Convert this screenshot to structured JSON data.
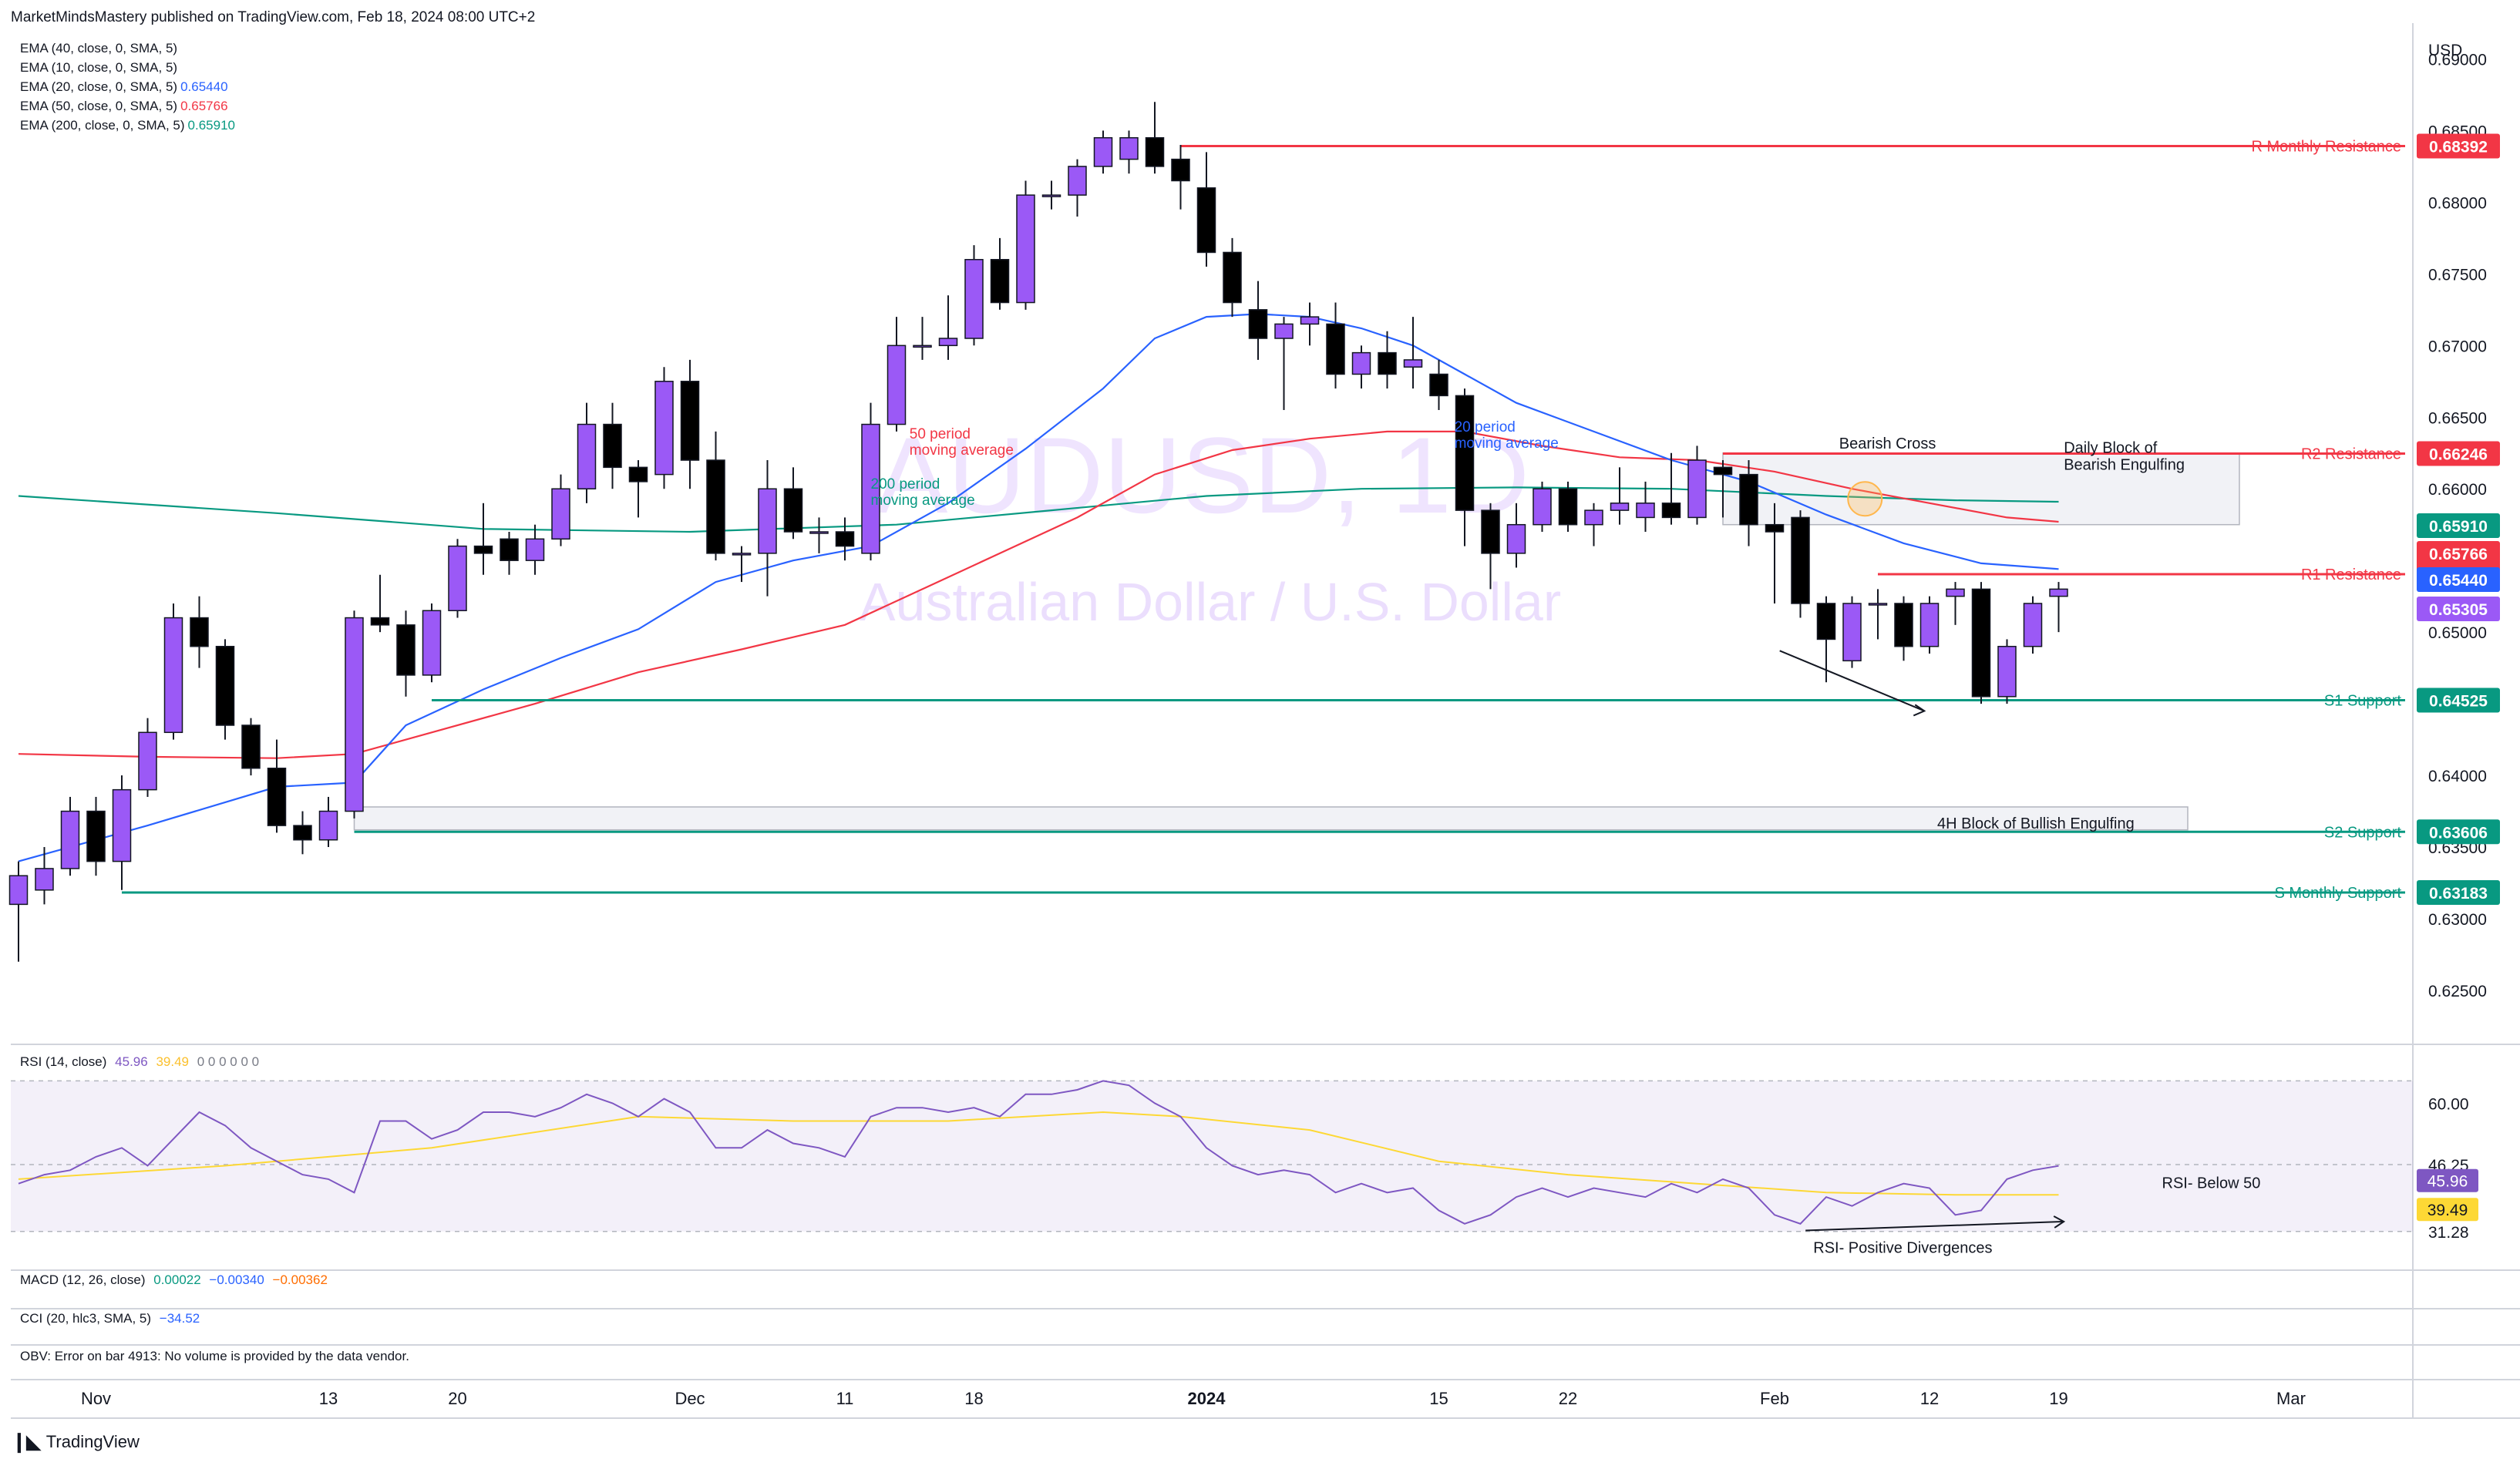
{
  "header": {
    "publisher": "MarketMindsMastery published on TradingView.com, Feb 18, 2024 08:00 UTC+2"
  },
  "legend": [
    {
      "label": "EMA (40, close, 0, SMA, 5)",
      "value": "",
      "color": "#131722"
    },
    {
      "label": "EMA (10, close, 0, SMA, 5)",
      "value": "",
      "color": "#131722"
    },
    {
      "label": "EMA (20, close, 0, SMA, 5)",
      "value": "0.65440",
      "color": "#2962ff"
    },
    {
      "label": "EMA (50, close, 0, SMA, 5)",
      "value": "0.65766",
      "color": "#f23645"
    },
    {
      "label": "EMA (200, close, 0, SMA, 5)",
      "value": "0.65910",
      "color": "#089981"
    }
  ],
  "watermark": {
    "symbol": "AUDUSD, 1D",
    "description": "Australian Dollar / U.S. Dollar"
  },
  "currency": "USD",
  "colors": {
    "bull": "#9b59f6",
    "bear": "#000000",
    "ema20": "#2962ff",
    "ema50": "#f23645",
    "ema200": "#089981",
    "resistance": "#f23645",
    "support": "#089981",
    "rsi": "#7e57c2",
    "rsi_ma": "#fdd835"
  },
  "chart_data": {
    "type": "candlestick",
    "ylim": [
      0.6215,
      0.6925
    ],
    "y_ticks": [
      "0.69000",
      "0.68500",
      "0.68000",
      "0.67500",
      "0.67000",
      "0.66500",
      "0.66000",
      "0.65500",
      "0.65000",
      "0.64500",
      "0.64000",
      "0.63500",
      "0.63000",
      "0.62500"
    ],
    "x_ticks": [
      {
        "label": "Nov",
        "bar": 3
      },
      {
        "label": "13",
        "bar": 12
      },
      {
        "label": "20",
        "bar": 17
      },
      {
        "label": "Dec",
        "bar": 26
      },
      {
        "label": "11",
        "bar": 32
      },
      {
        "label": "18",
        "bar": 37
      },
      {
        "label": "2024",
        "bar": 46
      },
      {
        "label": "15",
        "bar": 55
      },
      {
        "label": "22",
        "bar": 60
      },
      {
        "label": "Feb",
        "bar": 68
      },
      {
        "label": "12",
        "bar": 74
      },
      {
        "label": "19",
        "bar": 79
      },
      {
        "label": "Mar",
        "bar": 88
      }
    ],
    "candles": [
      [
        0.631,
        0.634,
        0.627,
        0.633
      ],
      [
        0.632,
        0.635,
        0.631,
        0.6335
      ],
      [
        0.6335,
        0.6385,
        0.633,
        0.6375
      ],
      [
        0.6375,
        0.6385,
        0.633,
        0.634
      ],
      [
        0.634,
        0.64,
        0.632,
        0.639
      ],
      [
        0.639,
        0.644,
        0.6385,
        0.643
      ],
      [
        0.643,
        0.652,
        0.6425,
        0.651
      ],
      [
        0.651,
        0.6525,
        0.6475,
        0.649
      ],
      [
        0.649,
        0.6495,
        0.6425,
        0.6435
      ],
      [
        0.6435,
        0.644,
        0.64,
        0.6405
      ],
      [
        0.6405,
        0.6425,
        0.636,
        0.6365
      ],
      [
        0.6365,
        0.6375,
        0.6345,
        0.6355
      ],
      [
        0.6355,
        0.6385,
        0.635,
        0.6375
      ],
      [
        0.6375,
        0.6515,
        0.637,
        0.651
      ],
      [
        0.651,
        0.654,
        0.65,
        0.6505
      ],
      [
        0.6505,
        0.6515,
        0.6455,
        0.647
      ],
      [
        0.647,
        0.652,
        0.6465,
        0.6515
      ],
      [
        0.6515,
        0.6565,
        0.651,
        0.656
      ],
      [
        0.656,
        0.659,
        0.654,
        0.6555
      ],
      [
        0.6565,
        0.657,
        0.654,
        0.655
      ],
      [
        0.655,
        0.6575,
        0.654,
        0.6565
      ],
      [
        0.6565,
        0.661,
        0.656,
        0.66
      ],
      [
        0.66,
        0.666,
        0.659,
        0.6645
      ],
      [
        0.6645,
        0.666,
        0.66,
        0.6615
      ],
      [
        0.6615,
        0.662,
        0.658,
        0.6605
      ],
      [
        0.661,
        0.6685,
        0.66,
        0.6675
      ],
      [
        0.6675,
        0.669,
        0.66,
        0.662
      ],
      [
        0.662,
        0.664,
        0.655,
        0.6555
      ],
      [
        0.6555,
        0.656,
        0.6535,
        0.6555
      ],
      [
        0.6555,
        0.662,
        0.6525,
        0.66
      ],
      [
        0.66,
        0.6615,
        0.6565,
        0.657
      ],
      [
        0.657,
        0.658,
        0.6555,
        0.657
      ],
      [
        0.657,
        0.658,
        0.655,
        0.656
      ],
      [
        0.6555,
        0.666,
        0.655,
        0.6645
      ],
      [
        0.6645,
        0.672,
        0.664,
        0.67
      ],
      [
        0.67,
        0.672,
        0.669,
        0.67
      ],
      [
        0.67,
        0.6735,
        0.669,
        0.6705
      ],
      [
        0.6705,
        0.677,
        0.67,
        0.676
      ],
      [
        0.676,
        0.6775,
        0.6725,
        0.673
      ],
      [
        0.673,
        0.6815,
        0.6725,
        0.6805
      ],
      [
        0.6805,
        0.6815,
        0.6795,
        0.6805
      ],
      [
        0.6805,
        0.683,
        0.679,
        0.6825
      ],
      [
        0.6825,
        0.685,
        0.682,
        0.6845
      ],
      [
        0.683,
        0.685,
        0.682,
        0.6845
      ],
      [
        0.6845,
        0.687,
        0.682,
        0.6825
      ],
      [
        0.683,
        0.684,
        0.6795,
        0.6815
      ],
      [
        0.681,
        0.6835,
        0.6755,
        0.6765
      ],
      [
        0.6765,
        0.6775,
        0.672,
        0.673
      ],
      [
        0.6725,
        0.6745,
        0.669,
        0.6705
      ],
      [
        0.6705,
        0.672,
        0.6655,
        0.6715
      ],
      [
        0.6715,
        0.673,
        0.67,
        0.672
      ],
      [
        0.6715,
        0.673,
        0.667,
        0.668
      ],
      [
        0.668,
        0.67,
        0.667,
        0.6695
      ],
      [
        0.6695,
        0.671,
        0.667,
        0.668
      ],
      [
        0.6685,
        0.672,
        0.667,
        0.669
      ],
      [
        0.668,
        0.669,
        0.6655,
        0.6665
      ],
      [
        0.6665,
        0.667,
        0.656,
        0.6585
      ],
      [
        0.6585,
        0.659,
        0.653,
        0.6555
      ],
      [
        0.6555,
        0.659,
        0.6545,
        0.6575
      ],
      [
        0.6575,
        0.6605,
        0.657,
        0.66
      ],
      [
        0.66,
        0.6605,
        0.657,
        0.6575
      ],
      [
        0.6575,
        0.659,
        0.656,
        0.6585
      ],
      [
        0.6585,
        0.6615,
        0.6575,
        0.659
      ],
      [
        0.658,
        0.6605,
        0.657,
        0.659
      ],
      [
        0.659,
        0.6625,
        0.6575,
        0.658
      ],
      [
        0.658,
        0.663,
        0.6575,
        0.662
      ],
      [
        0.6615,
        0.662,
        0.658,
        0.661
      ],
      [
        0.661,
        0.662,
        0.656,
        0.6575
      ],
      [
        0.6575,
        0.659,
        0.652,
        0.657
      ],
      [
        0.658,
        0.6585,
        0.651,
        0.652
      ],
      [
        0.652,
        0.6525,
        0.6465,
        0.6495
      ],
      [
        0.648,
        0.6525,
        0.6475,
        0.652
      ],
      [
        0.652,
        0.653,
        0.6495,
        0.652
      ],
      [
        0.652,
        0.6525,
        0.648,
        0.649
      ],
      [
        0.649,
        0.6525,
        0.6485,
        0.652
      ],
      [
        0.6525,
        0.6535,
        0.6505,
        0.653
      ],
      [
        0.653,
        0.6535,
        0.645,
        0.6455
      ],
      [
        0.6455,
        0.6495,
        0.645,
        0.649
      ],
      [
        0.649,
        0.6525,
        0.6485,
        0.652
      ],
      [
        0.6525,
        0.6535,
        0.65,
        0.653
      ]
    ],
    "ema20": [
      [
        0,
        0.634
      ],
      [
        5,
        0.6365
      ],
      [
        10,
        0.6392
      ],
      [
        13,
        0.6395
      ],
      [
        15,
        0.6435
      ],
      [
        18,
        0.646
      ],
      [
        21,
        0.6482
      ],
      [
        24,
        0.6502
      ],
      [
        27,
        0.6535
      ],
      [
        30,
        0.655
      ],
      [
        33,
        0.656
      ],
      [
        36,
        0.659
      ],
      [
        39,
        0.6628
      ],
      [
        42,
        0.667
      ],
      [
        44,
        0.6705
      ],
      [
        46,
        0.672
      ],
      [
        48,
        0.6722
      ],
      [
        50,
        0.672
      ],
      [
        52,
        0.6712
      ],
      [
        54,
        0.67
      ],
      [
        56,
        0.668
      ],
      [
        58,
        0.666
      ],
      [
        61,
        0.664
      ],
      [
        64,
        0.662
      ],
      [
        67,
        0.6605
      ],
      [
        70,
        0.6582
      ],
      [
        73,
        0.6562
      ],
      [
        76,
        0.6548
      ],
      [
        79,
        0.6544
      ]
    ],
    "ema50": [
      [
        0,
        0.6415
      ],
      [
        5,
        0.6413
      ],
      [
        10,
        0.6412
      ],
      [
        13,
        0.6415
      ],
      [
        16,
        0.643
      ],
      [
        20,
        0.645
      ],
      [
        24,
        0.6472
      ],
      [
        28,
        0.6488
      ],
      [
        32,
        0.6505
      ],
      [
        35,
        0.653
      ],
      [
        38,
        0.6555
      ],
      [
        41,
        0.658
      ],
      [
        44,
        0.661
      ],
      [
        47,
        0.6627
      ],
      [
        50,
        0.6635
      ],
      [
        53,
        0.664
      ],
      [
        56,
        0.664
      ],
      [
        59,
        0.663
      ],
      [
        62,
        0.6622
      ],
      [
        65,
        0.662
      ],
      [
        68,
        0.6612
      ],
      [
        71,
        0.66
      ],
      [
        74,
        0.659
      ],
      [
        77,
        0.658
      ],
      [
        79,
        0.6577
      ]
    ],
    "ema200": [
      [
        0,
        0.6595
      ],
      [
        10,
        0.6583
      ],
      [
        18,
        0.6572
      ],
      [
        26,
        0.657
      ],
      [
        34,
        0.6575
      ],
      [
        40,
        0.6585
      ],
      [
        46,
        0.6595
      ],
      [
        52,
        0.66
      ],
      [
        58,
        0.6601
      ],
      [
        64,
        0.66
      ],
      [
        70,
        0.6595
      ],
      [
        75,
        0.6592
      ],
      [
        79,
        0.6591
      ]
    ],
    "levels": [
      {
        "label": "R Monthly Resistance",
        "value": "0.68392",
        "price": 0.68392,
        "from_bar": 45,
        "kind": "resistance"
      },
      {
        "label": "R2 Resistance",
        "value": "0.66246",
        "price": 0.66246,
        "from_bar": 66,
        "kind": "resistance"
      },
      {
        "label": "R1 Resistance",
        "value": "0.65404",
        "price": 0.65404,
        "from_bar": 72,
        "kind": "resistance"
      },
      {
        "label": "S1 Support",
        "value": "0.64525",
        "price": 0.64525,
        "from_bar": 16,
        "kind": "support"
      },
      {
        "label": "S2 Support",
        "value": "0.63606",
        "price": 0.63606,
        "from_bar": 13,
        "kind": "support"
      },
      {
        "label": "S Monthly Support",
        "value": "0.63183",
        "price": 0.63183,
        "from_bar": 4,
        "kind": "support"
      }
    ],
    "price_badges": [
      {
        "value": "0.65910",
        "price": 0.6591,
        "color": "#089981"
      },
      {
        "value": "0.65766",
        "price": 0.65766,
        "color": "#f23645"
      },
      {
        "value": "0.65440",
        "price": 0.6544,
        "color": "#2962ff"
      },
      {
        "value": "0.65305",
        "price": 0.65305,
        "color": "#9b59f6"
      }
    ],
    "annotations": {
      "ma20": "20 period\nmoving average",
      "ma50": "50 period\nmoving average",
      "ma200": "200 period\nmoving average",
      "bearish_cross": "Bearish Cross",
      "daily_block": "Daily Block of\nBearish Engulfing",
      "h4_block": "4H Block of Bullish Engulfing"
    },
    "zones": [
      {
        "name": "daily-block",
        "from_bar": 66,
        "to_bar": 86,
        "top": 0.6625,
        "bottom": 0.6575
      },
      {
        "name": "h4-block",
        "from_bar": 13,
        "to_bar": 84,
        "top": 0.6378,
        "bottom": 0.6362
      }
    ],
    "rsi": {
      "title": "RSI (14, close)",
      "value": "45.96",
      "ma_value": "39.49",
      "extra": "0 0 0 0 0 0",
      "ylim": [
        24,
        68
      ],
      "y_ticks": [
        "60.00",
        "46.25",
        "31.28"
      ],
      "band": [
        31.28,
        65
      ],
      "line": [
        [
          0,
          42
        ],
        [
          1,
          44
        ],
        [
          2,
          45
        ],
        [
          3,
          48
        ],
        [
          4,
          50
        ],
        [
          5,
          46
        ],
        [
          6,
          52
        ],
        [
          7,
          58
        ],
        [
          8,
          55
        ],
        [
          9,
          50
        ],
        [
          10,
          47
        ],
        [
          11,
          44
        ],
        [
          12,
          43
        ],
        [
          13,
          40
        ],
        [
          14,
          56
        ],
        [
          15,
          56
        ],
        [
          16,
          52
        ],
        [
          17,
          54
        ],
        [
          18,
          58
        ],
        [
          19,
          58
        ],
        [
          20,
          57
        ],
        [
          21,
          59
        ],
        [
          22,
          62
        ],
        [
          23,
          60
        ],
        [
          24,
          57
        ],
        [
          25,
          61
        ],
        [
          26,
          58
        ],
        [
          27,
          50
        ],
        [
          28,
          50
        ],
        [
          29,
          54
        ],
        [
          30,
          51
        ],
        [
          31,
          50
        ],
        [
          32,
          48
        ],
        [
          33,
          57
        ],
        [
          34,
          59
        ],
        [
          35,
          59
        ],
        [
          36,
          58
        ],
        [
          37,
          59
        ],
        [
          38,
          57
        ],
        [
          39,
          62
        ],
        [
          40,
          62
        ],
        [
          41,
          63
        ],
        [
          42,
          65
        ],
        [
          43,
          64
        ],
        [
          44,
          60
        ],
        [
          45,
          57
        ],
        [
          46,
          50
        ],
        [
          47,
          46
        ],
        [
          48,
          44
        ],
        [
          49,
          45
        ],
        [
          50,
          44
        ],
        [
          51,
          40
        ],
        [
          52,
          42
        ],
        [
          53,
          40
        ],
        [
          54,
          41
        ],
        [
          55,
          36
        ],
        [
          56,
          33
        ],
        [
          57,
          35
        ],
        [
          58,
          39
        ],
        [
          59,
          41
        ],
        [
          60,
          39
        ],
        [
          61,
          41
        ],
        [
          62,
          40
        ],
        [
          63,
          39
        ],
        [
          64,
          42
        ],
        [
          65,
          40
        ],
        [
          66,
          43
        ],
        [
          67,
          41
        ],
        [
          68,
          35
        ],
        [
          69,
          33
        ],
        [
          70,
          39
        ],
        [
          71,
          37
        ],
        [
          72,
          40
        ],
        [
          73,
          42
        ],
        [
          74,
          41
        ],
        [
          75,
          35
        ],
        [
          76,
          36
        ],
        [
          77,
          43
        ],
        [
          78,
          45
        ],
        [
          79,
          45.96
        ]
      ],
      "ma": [
        [
          0,
          43
        ],
        [
          8,
          46
        ],
        [
          16,
          50
        ],
        [
          24,
          57
        ],
        [
          30,
          56
        ],
        [
          36,
          56
        ],
        [
          42,
          58
        ],
        [
          45,
          57
        ],
        [
          50,
          54
        ],
        [
          55,
          47
        ],
        [
          60,
          44
        ],
        [
          65,
          42
        ],
        [
          70,
          40
        ],
        [
          75,
          39.5
        ],
        [
          79,
          39.49
        ]
      ],
      "annotations": {
        "below50": "RSI- Below 50",
        "divergence": "RSI- Positive Divergences"
      }
    },
    "macd": {
      "title": "MACD (12, 26, close)",
      "v1": "0.00022",
      "v2": "−0.00340",
      "v3": "−0.00362"
    },
    "cci": {
      "title": "CCI (20, hlc3, SMA, 5)",
      "value": "−34.52"
    },
    "obv": {
      "title": "OBV: Error on bar 4913: No volume is provided by the data vendor."
    }
  },
  "footer": {
    "brand": "TradingView"
  }
}
